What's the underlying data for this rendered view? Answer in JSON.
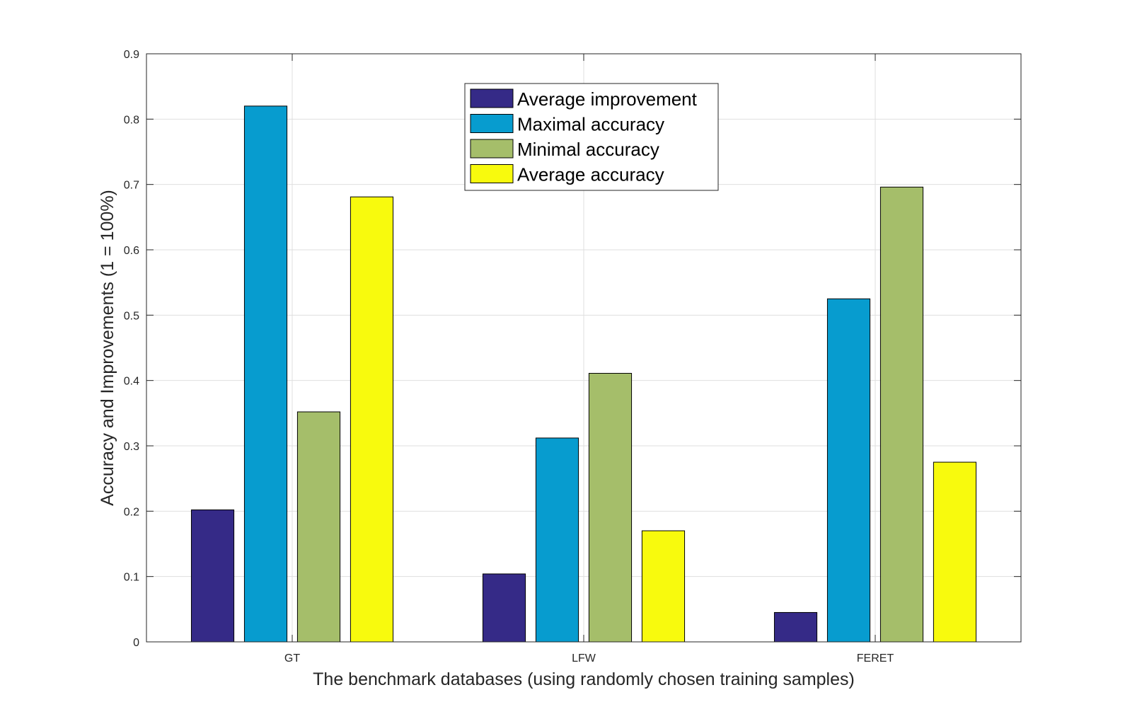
{
  "chart_data": {
    "type": "bar",
    "title": "",
    "xlabel": "The benchmark databases (using randomly chosen training samples)",
    "ylabel": "Accuracy and Improvements (1 = 100%)",
    "categories": [
      "GT",
      "LFW",
      "FERET"
    ],
    "ylim": [
      0,
      0.9
    ],
    "yticks": [
      "0",
      "0.1",
      "0.2",
      "0.3",
      "0.4",
      "0.5",
      "0.6",
      "0.7",
      "0.8",
      "0.9"
    ],
    "grid": true,
    "legend_position": "top-center",
    "series": [
      {
        "name": "Average improvement",
        "color": "#352a87",
        "values": [
          0.202,
          0.104,
          0.045
        ]
      },
      {
        "name": "Maximal accuracy",
        "color": "#079ccf",
        "values": [
          0.82,
          0.312,
          0.525
        ]
      },
      {
        "name": "Minimal accuracy",
        "color": "#a5be6a",
        "values": [
          0.352,
          0.411,
          0.696
        ]
      },
      {
        "name": "Average accuracy",
        "color": "#f8fa0d",
        "values": [
          0.681,
          0.17,
          0.275
        ]
      }
    ]
  }
}
